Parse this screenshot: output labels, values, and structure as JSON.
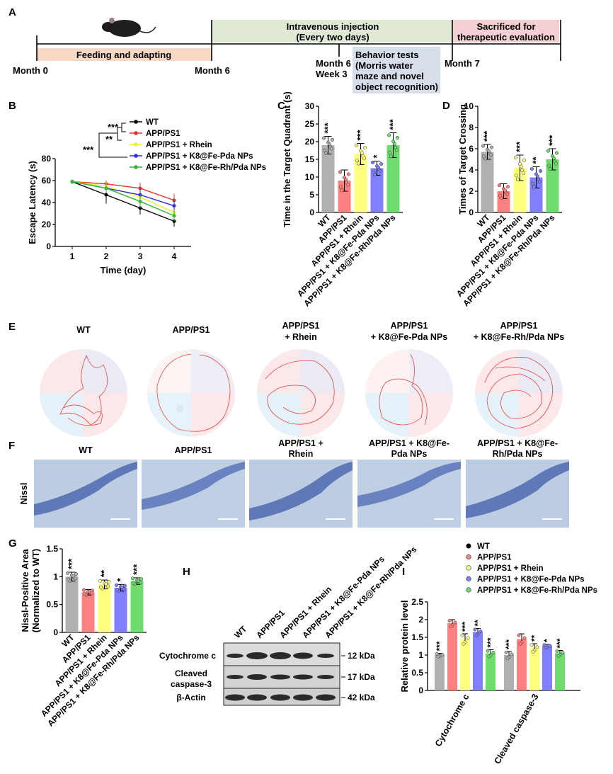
{
  "panels": {
    "A": "A",
    "B": "B",
    "C": "C",
    "D": "D",
    "E": "E",
    "F": "F",
    "G": "G",
    "H": "H",
    "I": "I"
  },
  "colors": {
    "wt": "#000000",
    "app": "#e8302a",
    "rhein": "#eeee33",
    "fepda": "#2d2ddc",
    "ferh": "#2fb92f"
  },
  "bar_colors": {
    "wt": "#b0b0b0",
    "app": "#ff8080",
    "rhein": "#ffff80",
    "fepda": "#8080ff",
    "ferh": "#6fdc6f"
  },
  "groups": [
    "WT",
    "APP/PS1",
    "APP/PS1 + Rhein",
    "APP/PS1 + K8@Fe-Pda NPs",
    "APP/PS1 + K8@Fe-Rh/Pda NPs"
  ],
  "timeline": {
    "feeding": "Feeding and adapting",
    "injection_1": "Intravenous injection",
    "injection_2": "(Every two days)",
    "sacrifice_1": "Sacrificed for",
    "sacrifice_2": "therapeutic evaluation",
    "behavior": [
      "Behavior tests",
      "(Morris water",
      "maze and novel",
      "object recognition)"
    ],
    "m0": "Month 0",
    "m6": "Month 6",
    "m6w3a": "Month 6",
    "m6w3b": "Week 3",
    "m7": "Month 7"
  },
  "b_sig": {
    "s1": "***",
    "s2": "**",
    "s3": "***"
  },
  "e_titles": [
    [
      "WT"
    ],
    [
      "APP/PS1"
    ],
    [
      "APP/PS1",
      "+ Rhein"
    ],
    [
      "APP/PS1",
      "+ K8@Fe-Pda NPs"
    ],
    [
      "APP/PS1",
      "+ K8@Fe-Rh/Pda NPs"
    ]
  ],
  "f_titles": [
    [
      "WT"
    ],
    [
      "APP/PS1"
    ],
    [
      "APP/PS1 +",
      "Rhein"
    ],
    [
      "APP/PS1 + K8@Fe-",
      "Pda NPs"
    ],
    [
      "APP/PS1 + K8@Fe-",
      "Rh/Pda NPs"
    ]
  ],
  "f_ylabel": "Nissl",
  "h_blot": {
    "lanes": [
      "WT",
      "APP/PS1",
      "APP/PS1 + Rhein",
      "APP/PS1 + K8@Fe-Pda NPs",
      "APP/PS1 + K8@Fe-Rh/Pda NPs"
    ],
    "rows": [
      "Cytochrome c",
      "Cleaved",
      "caspase-3",
      "β-Actin"
    ],
    "kda": [
      "12 kDa",
      "17 kDa",
      "42 kDa"
    ]
  },
  "chart_data": [
    {
      "id": "B",
      "type": "line",
      "xlabel": "Time (day)",
      "ylabel": "Escape Latency (s)",
      "x": [
        1,
        2,
        3,
        4
      ],
      "xlim": [
        0.5,
        4.5
      ],
      "ylim": [
        0,
        80
      ],
      "yticks": [
        0,
        20,
        40,
        60,
        80
      ],
      "legend_position": "top-right",
      "series": [
        {
          "name": "WT",
          "values": [
            59,
            47,
            35,
            23
          ],
          "err": [
            2,
            8,
            6,
            5
          ]
        },
        {
          "name": "APP/PS1",
          "values": [
            59,
            57,
            53,
            42
          ],
          "err": [
            2,
            3,
            5,
            6
          ]
        },
        {
          "name": "APP/PS1 + Rhein",
          "values": [
            59,
            55,
            45,
            31
          ],
          "err": [
            2,
            4,
            5,
            4
          ]
        },
        {
          "name": "APP/PS1 + K8@Fe-Pda NPs",
          "values": [
            59,
            53,
            47,
            37
          ],
          "err": [
            2,
            4,
            5,
            5
          ]
        },
        {
          "name": "APP/PS1 + K8@Fe-Rh/Pda NPs",
          "values": [
            59,
            53,
            41,
            28
          ],
          "err": [
            2,
            4,
            6,
            5
          ]
        }
      ]
    },
    {
      "id": "C",
      "type": "bar",
      "ylabel": "Time in the Target Quadrant (s)",
      "categories": [
        "WT",
        "APP/PS1",
        "APP/PS1 + Rhein",
        "APP/PS1 + K8@Fe-Pda NPs",
        "APP/PS1 + K8@Fe-Rh/Pda NPs"
      ],
      "values": [
        19,
        9,
        16.5,
        12.5,
        19
      ],
      "err": [
        2.5,
        3,
        3,
        2,
        3.5
      ],
      "sig": [
        "***",
        "",
        "***",
        "*",
        "***"
      ],
      "ylim": [
        0,
        30
      ],
      "yticks": [
        0,
        5,
        10,
        15,
        20,
        25,
        30
      ]
    },
    {
      "id": "D",
      "type": "bar",
      "ylabel": "Times of Target Crossing",
      "categories": [
        "WT",
        "APP/PS1",
        "APP/PS1 + Rhein",
        "APP/PS1 + K8@Fe-Pda NPs",
        "APP/PS1 + K8@Fe-Rh/Pda NPs"
      ],
      "values": [
        5.7,
        2,
        4.2,
        3.3,
        5
      ],
      "err": [
        0.7,
        0.7,
        1.2,
        1,
        1
      ],
      "sig": [
        "***",
        "",
        "***",
        "**",
        "***"
      ],
      "ylim": [
        0,
        10
      ],
      "yticks": [
        0,
        2,
        4,
        6,
        8,
        10
      ]
    },
    {
      "id": "G",
      "type": "bar",
      "ylabel": "Nissl-Positive Area (Normalized to WT)",
      "ylabel_lines": [
        "Nissl-Positive Area",
        "(Normalized to WT)"
      ],
      "categories": [
        "WT",
        "APP/PS1",
        "APP/PS1 + Rhein",
        "APP/PS1 + K8@Fe-Pda NPs",
        "APP/PS1 + K8@Fe-Rh/Pda NPs"
      ],
      "values": [
        1,
        0.72,
        0.86,
        0.8,
        0.92
      ],
      "err": [
        0.08,
        0.05,
        0.08,
        0.06,
        0.06
      ],
      "sig": [
        "***",
        "",
        "**",
        "*",
        "***"
      ],
      "ylim": [
        0,
        1.5
      ],
      "yticks": [
        0,
        0.5,
        1,
        1.5
      ]
    },
    {
      "id": "I",
      "type": "bar",
      "ylabel": "Relative protein level",
      "categories": [
        "Cytochrome c",
        "Cleaved caspase-3"
      ],
      "series": [
        {
          "name": "WT",
          "values": [
            1,
            1
          ],
          "err": [
            0.05,
            0.1
          ],
          "sig": [
            "***",
            "***"
          ]
        },
        {
          "name": "APP/PS1",
          "values": [
            1.9,
            1.45
          ],
          "err": [
            0.1,
            0.15
          ],
          "sig": [
            "",
            ""
          ]
        },
        {
          "name": "APP/PS1 + Rhein",
          "values": [
            1.45,
            1.2
          ],
          "err": [
            0.15,
            0.12
          ],
          "sig": [
            "***",
            "**"
          ]
        },
        {
          "name": "APP/PS1 + K8@Fe-Pda NPs",
          "values": [
            1.65,
            1.25
          ],
          "err": [
            0.1,
            0.05
          ],
          "sig": [
            "**",
            "*"
          ]
        },
        {
          "name": "APP/PS1 + K8@Fe-Rh/Pda NPs",
          "values": [
            1.05,
            1.05
          ],
          "err": [
            0.1,
            0.08
          ],
          "sig": [
            "***",
            "***"
          ]
        }
      ],
      "ylim": [
        0,
        2.5
      ],
      "yticks": [
        0,
        0.5,
        1,
        1.5,
        2,
        2.5
      ],
      "legend_position": "top"
    }
  ]
}
